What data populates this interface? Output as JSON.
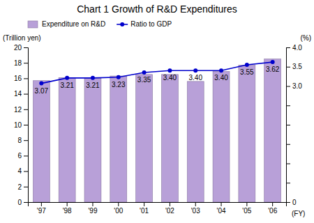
{
  "chart_data": {
    "type": "bar",
    "title": "Chart 1 Growth of R&D Expenditures",
    "xlabel": "(FY)",
    "ylabel": "(Trillion yen)",
    "y2label": "(%)",
    "categories": [
      "'97",
      "'98",
      "'99",
      "'00",
      "'01",
      "'02",
      "'03",
      "'04",
      "'05",
      "'06"
    ],
    "series": [
      {
        "name": "Expenditure on R&D",
        "type": "bar",
        "color": "#b8a0d8",
        "values": [
          15.7,
          16.1,
          16.0,
          16.3,
          16.5,
          16.5,
          15.6,
          16.9,
          17.7,
          18.5
        ]
      },
      {
        "name": "Ratio to GDP",
        "type": "line",
        "color": "#0000cc",
        "marker": "circle",
        "axis": "y2",
        "data_labels": true,
        "values": [
          3.07,
          3.21,
          3.21,
          3.23,
          3.35,
          3.4,
          3.4,
          3.4,
          3.55,
          3.62
        ],
        "value_labels": [
          "3.07",
          "3.21",
          "3.21",
          "3.23",
          "3.35",
          "3.40",
          "3.40",
          "3.40",
          "3.55",
          "3.62"
        ]
      }
    ],
    "ylim": [
      0,
      20
    ],
    "yticks": [
      0,
      2,
      4,
      6,
      8,
      10,
      12,
      14,
      16,
      18,
      20
    ],
    "y2lim": [
      0,
      4.0
    ],
    "y2ticks": [
      0,
      {
        "value": 0.5,
        "label": null
      },
      {
        "value": 1.0,
        "label": null
      },
      {
        "value": 1.5,
        "label": null
      },
      {
        "value": 2.0,
        "label": null
      },
      {
        "value": 2.5,
        "label": null
      },
      {
        "value": 3.0,
        "label": "3.0"
      },
      3.5,
      {
        "value": 4.0,
        "label": "4.0"
      }
    ],
    "grid": false,
    "legend": "upper left"
  }
}
